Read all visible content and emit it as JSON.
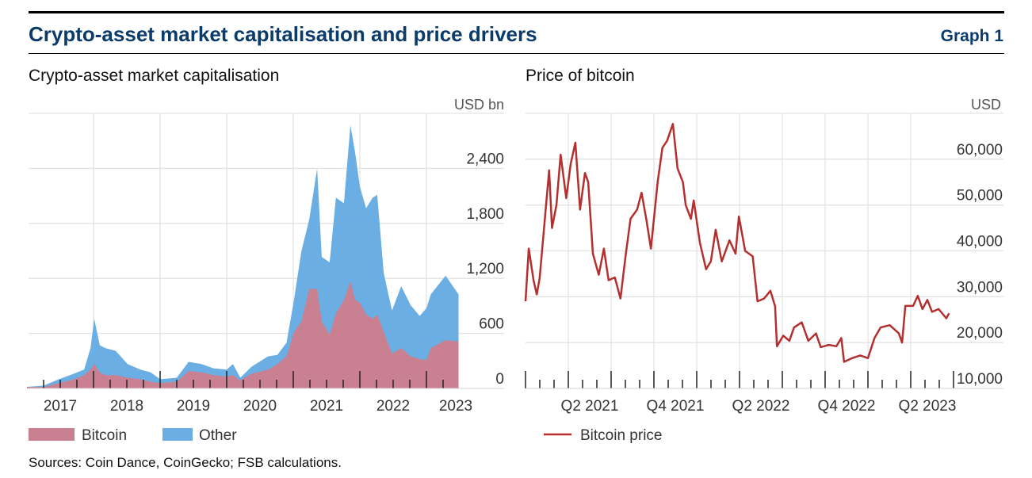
{
  "header": {
    "title": "Crypto-asset market capitalisation and price drivers",
    "graph_label": "Graph 1"
  },
  "footer": {
    "source": "Sources: Coin Dance, CoinGecko; FSB calculations."
  },
  "colors": {
    "bitcoin": "#c98090",
    "other": "#6aaee3",
    "bitcoin_price": "#b3302f",
    "title": "#0b3b6a"
  },
  "chart_data": [
    {
      "type": "area",
      "stacked": true,
      "title": "Crypto-asset market capitalisation",
      "unit": "USD bn",
      "ylim": [
        0,
        3000
      ],
      "yticks": [
        0,
        600,
        1200,
        1800,
        2400
      ],
      "ytick_labels": [
        "0",
        "600",
        "1,200",
        "1,800",
        "2,400"
      ],
      "xtick_labels": [
        "2017",
        "2018",
        "2019",
        "2020",
        "2021",
        "2022",
        "2023"
      ],
      "grid": true,
      "legend_placement": "bottom",
      "x": [
        "2017-01-01",
        "2017-04-01",
        "2017-06-25",
        "2017-09-01",
        "2017-11-10",
        "2017-12-15",
        "2018-01-05",
        "2018-02-05",
        "2018-03-05",
        "2018-05-01",
        "2018-07-05",
        "2018-09-15",
        "2018-11-10",
        "2019-01-01",
        "2019-04-01",
        "2019-06-05",
        "2019-08-15",
        "2019-10-20",
        "2020-01-01",
        "2020-02-05",
        "2020-03-15",
        "2020-05-15",
        "2020-08-15",
        "2020-10-05",
        "2020-11-25",
        "2021-01-05",
        "2021-02-15",
        "2021-03-28",
        "2021-05-10",
        "2021-06-05",
        "2021-07-18",
        "2021-08-22",
        "2021-10-05",
        "2021-11-10",
        "2021-12-05",
        "2022-01-01",
        "2022-02-05",
        "2022-03-10",
        "2022-04-05",
        "2022-05-10",
        "2022-06-25",
        "2022-08-15",
        "2022-10-05",
        "2022-11-25",
        "2023-01-01",
        "2023-01-25",
        "2023-04-15",
        "2023-06-25"
      ],
      "series": [
        {
          "name": "Bitcoin",
          "values": [
            15,
            15,
            60,
            90,
            145,
            205,
            265,
            175,
            145,
            145,
            117,
            100,
            73,
            60,
            73,
            190,
            175,
            145,
            130,
            145,
            88,
            160,
            205,
            265,
            350,
            615,
            730,
            1085,
            1085,
            730,
            585,
            820,
            965,
            1170,
            965,
            935,
            805,
            760,
            805,
            615,
            380,
            440,
            350,
            320,
            310,
            440,
            527,
            513
          ]
        },
        {
          "name": "Other",
          "values": [
            2,
            15,
            40,
            60,
            60,
            235,
            495,
            295,
            295,
            265,
            148,
            105,
            102,
            40,
            44,
            100,
            90,
            75,
            75,
            120,
            29,
            75,
            145,
            100,
            150,
            350,
            765,
            760,
            1315,
            705,
            790,
            1260,
            1055,
            1700,
            1615,
            1265,
            1160,
            1320,
            1305,
            645,
            470,
            675,
            560,
            470,
            565,
            585,
            703,
            512
          ]
        }
      ]
    },
    {
      "type": "line",
      "title": "Price of bitcoin",
      "unit": "USD",
      "ylim": [
        10000,
        70000
      ],
      "yticks": [
        10000,
        20000,
        30000,
        40000,
        50000,
        60000
      ],
      "ytick_labels": [
        "10,000",
        "20,000",
        "30,000",
        "40,000",
        "50,000",
        "60,000"
      ],
      "xtick_labels": [
        "Q2 2021",
        "Q4 2021",
        "Q2 2022",
        "Q4 2022",
        "Q2 2023"
      ],
      "grid": true,
      "legend_placement": "bottom",
      "series": [
        {
          "name": "Bitcoin price",
          "x": [
            "2021-01-01",
            "2021-01-08",
            "2021-01-18",
            "2021-01-25",
            "2021-01-31",
            "2021-02-11",
            "2021-02-21",
            "2021-02-27",
            "2021-03-06",
            "2021-03-15",
            "2021-03-27",
            "2021-04-06",
            "2021-04-16",
            "2021-04-26",
            "2021-05-06",
            "2021-05-13",
            "2021-05-23",
            "2021-06-05",
            "2021-06-16",
            "2021-06-26",
            "2021-07-09",
            "2021-07-21",
            "2021-08-02",
            "2021-08-12",
            "2021-08-26",
            "2021-09-05",
            "2021-09-15",
            "2021-09-25",
            "2021-10-09",
            "2021-10-19",
            "2021-10-29",
            "2021-11-11",
            "2021-11-21",
            "2021-12-02",
            "2021-12-08",
            "2021-12-19",
            "2021-12-25",
            "2022-01-08",
            "2022-01-21",
            "2022-01-31",
            "2022-02-11",
            "2022-02-24",
            "2022-03-10",
            "2022-03-23",
            "2022-03-30",
            "2022-04-13",
            "2022-04-29",
            "2022-05-09",
            "2022-05-23",
            "2022-06-06",
            "2022-06-16",
            "2022-06-20",
            "2022-07-03",
            "2022-07-16",
            "2022-07-26",
            "2022-08-12",
            "2022-08-26",
            "2022-09-12",
            "2022-09-22",
            "2022-10-09",
            "2022-10-25",
            "2022-11-05",
            "2022-11-11",
            "2022-11-28",
            "2022-12-15",
            "2023-01-01",
            "2023-01-15",
            "2023-01-28",
            "2023-02-17",
            "2023-03-06",
            "2023-03-13",
            "2023-03-20",
            "2023-04-06",
            "2023-04-16",
            "2023-04-26",
            "2023-05-06",
            "2023-05-16",
            "2023-05-30",
            "2023-06-16",
            "2023-06-22"
          ],
          "values": [
            29000,
            40500,
            33600,
            30500,
            34000,
            46000,
            57600,
            45000,
            50000,
            61000,
            51500,
            59000,
            63600,
            49000,
            57000,
            55000,
            39400,
            34800,
            40500,
            33600,
            34200,
            29600,
            39400,
            47000,
            49000,
            52700,
            47000,
            40500,
            55000,
            62500,
            64000,
            67700,
            58000,
            55000,
            50000,
            47000,
            51000,
            41700,
            36000,
            37700,
            44600,
            37700,
            42300,
            39400,
            47500,
            40000,
            38800,
            29000,
            29600,
            31300,
            27900,
            19200,
            21500,
            20400,
            23300,
            24400,
            20400,
            22000,
            19000,
            19500,
            19200,
            21000,
            15800,
            16600,
            17200,
            16600,
            21000,
            23300,
            23800,
            22000,
            20000,
            28000,
            28000,
            30200,
            27300,
            29300,
            26700,
            27300,
            25300,
            26400
          ]
        }
      ]
    }
  ]
}
